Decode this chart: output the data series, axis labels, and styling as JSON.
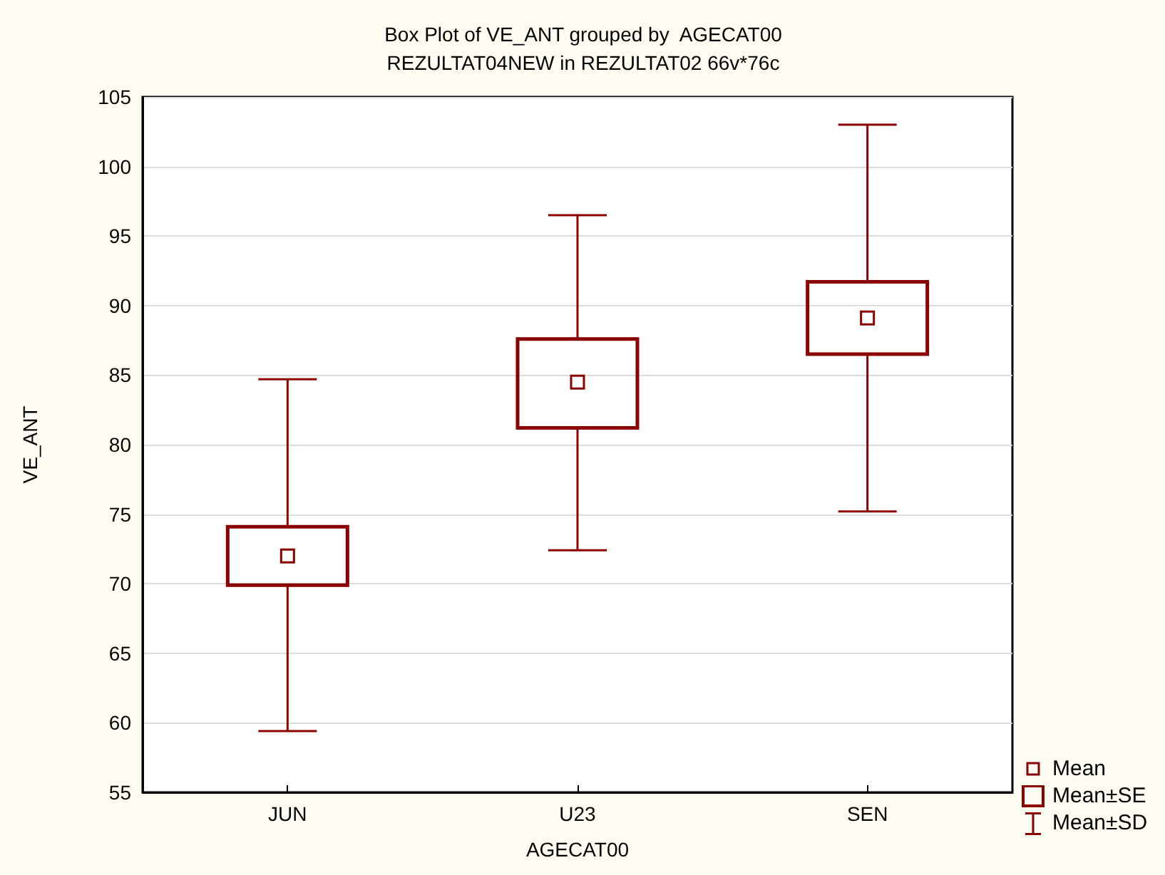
{
  "chart_data": {
    "type": "box",
    "title": "Box Plot of VE_ANT grouped by  AGECAT00",
    "subtitle": "REZULTAT04NEW in REZULTAT02 66v*76c",
    "xlabel": "AGECAT00",
    "ylabel": "VE_ANT",
    "categories": [
      "JUN",
      "U23",
      "SEN"
    ],
    "boxes": [
      {
        "low": 59.4,
        "q1": 69.9,
        "q3": 74.1,
        "high": 84.7,
        "mean": 72.0
      },
      {
        "low": 72.4,
        "q1": 81.2,
        "q3": 87.6,
        "high": 96.5,
        "mean": 84.5
      },
      {
        "low": 75.2,
        "q1": 86.5,
        "q3": 91.7,
        "high": 103.0,
        "mean": 89.1
      }
    ],
    "color": "#8b0000",
    "ylim": [
      55,
      105
    ],
    "yticks": [
      55,
      60,
      65,
      70,
      75,
      80,
      85,
      90,
      95,
      100,
      105
    ],
    "grid": "y",
    "marker": "square",
    "annotations": [
      "Mean",
      "Mean±SE",
      "Mean±SD"
    ]
  }
}
